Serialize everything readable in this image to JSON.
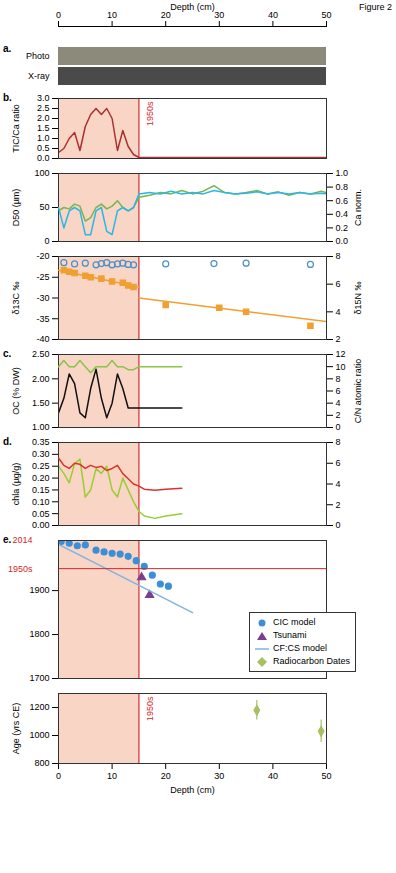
{
  "figure": {
    "label": "Figure 2",
    "xlabel": "Depth (cm)",
    "xlim": [
      0,
      50
    ],
    "xticks": [
      0,
      10,
      20,
      30,
      40,
      50
    ],
    "shaded": [
      0,
      15
    ],
    "line": 15
  },
  "chart_data": [
    {
      "label": "a.",
      "type": "image",
      "rows": [
        "Photo",
        "X-ray"
      ]
    },
    {
      "label": "b.",
      "type": "line",
      "ylabel": "TIC/Ca ratio",
      "ylim": [
        0,
        3
      ],
      "yticks": [
        {
          "value": 0,
          "label": "0.0"
        },
        {
          "value": 0.5,
          "label": "0.5"
        },
        {
          "value": 1,
          "label": "1.0"
        },
        {
          "value": 1.5,
          "label": "1.5"
        },
        {
          "value": 2,
          "label": "2.0"
        },
        {
          "value": 2.5,
          "label": "2.5"
        },
        {
          "value": 3,
          "label": "3.0"
        }
      ],
      "series": [
        {
          "color": "#a83232",
          "type": "line",
          "x": [
            0,
            1,
            2,
            3,
            4,
            5,
            6,
            7,
            8,
            9,
            10,
            11,
            12,
            13,
            14,
            15,
            20,
            30,
            40,
            50
          ],
          "values": [
            0.3,
            0.5,
            1.0,
            1.3,
            0.4,
            1.6,
            2.2,
            2.5,
            2.2,
            2.5,
            2.0,
            0.4,
            1.4,
            0.6,
            0.2,
            0.05,
            0.05,
            0.05,
            0.05,
            0.05
          ]
        }
      ],
      "annotations": [
        {
          "text": "1950s",
          "x": 15
        }
      ]
    },
    {
      "type": "line",
      "ylabel": "D50 (µm)",
      "ylim": [
        0,
        100
      ],
      "yticks": [
        0,
        50,
        100
      ],
      "y2label": "Ca norm.",
      "y2lim": [
        0,
        1
      ],
      "y2ticks": [
        {
          "value": 0,
          "label": "0.0"
        },
        {
          "value": 0.2,
          "label": "0.2"
        },
        {
          "value": 0.4,
          "label": "0.4"
        },
        {
          "value": 0.6,
          "label": "0.6"
        },
        {
          "value": 0.8,
          "label": "0.8"
        },
        {
          "value": 1,
          "label": "1.0"
        }
      ],
      "series": [
        {
          "color": "#7ab648",
          "type": "line",
          "x": [
            0,
            1,
            2,
            3,
            4,
            5,
            6,
            7,
            8,
            9,
            10,
            11,
            12,
            13,
            14,
            15,
            17,
            19,
            21,
            23,
            25,
            27,
            29,
            31,
            33,
            35,
            37,
            39,
            41,
            43,
            45,
            47,
            49,
            50
          ],
          "values": [
            45,
            50,
            48,
            55,
            52,
            30,
            35,
            50,
            55,
            48,
            52,
            60,
            50,
            45,
            50,
            65,
            68,
            72,
            70,
            75,
            70,
            74,
            82,
            72,
            70,
            72,
            75,
            70,
            73,
            68,
            72,
            70,
            74,
            72
          ]
        },
        {
          "color": "#29b6e8",
          "type": "line",
          "axis": "y2",
          "x": [
            0,
            1,
            2,
            3,
            4,
            5,
            6,
            7,
            8,
            9,
            10,
            11,
            12,
            13,
            14,
            15,
            17,
            19,
            21,
            23,
            25,
            27,
            29,
            31,
            33,
            35,
            37,
            39,
            41,
            43,
            45,
            47,
            49,
            50
          ],
          "values": [
            0.5,
            0.2,
            0.45,
            0.5,
            0.45,
            0.1,
            0.1,
            0.45,
            0.5,
            0.15,
            0.1,
            0.45,
            0.5,
            0.45,
            0.5,
            0.7,
            0.72,
            0.7,
            0.74,
            0.7,
            0.72,
            0.7,
            0.75,
            0.72,
            0.7,
            0.71,
            0.73,
            0.7,
            0.72,
            0.7,
            0.72,
            0.7,
            0.71,
            0.7
          ]
        }
      ]
    },
    {
      "type": "scatter",
      "ylabel": "δ13C ‰",
      "ylim": [
        -40,
        -20
      ],
      "yticks": [
        -40,
        -35,
        -30,
        -25,
        -20
      ],
      "y2label": "δ15N ‰",
      "y2lim": [
        2,
        8
      ],
      "y2ticks": [
        2,
        4,
        6,
        8
      ],
      "series": [
        {
          "color": "#4a90c8",
          "type": "scatter",
          "marker": "open-circle",
          "x": [
            1,
            3,
            5,
            7,
            8,
            9,
            10,
            11,
            12,
            13,
            14,
            20,
            29,
            35,
            47
          ],
          "values": [
            -21.5,
            -21.8,
            -21.6,
            -22,
            -21.7,
            -21.5,
            -22,
            -21.8,
            -21.6,
            -21.9,
            -22,
            -21.8,
            -21.7,
            -21.6,
            -21.9
          ]
        },
        {
          "color": "#f0a030",
          "type": "scatter",
          "marker": "square",
          "axis": "y2",
          "x": [
            1,
            2,
            3,
            5,
            6,
            8,
            10,
            12,
            13,
            14,
            20,
            30,
            35,
            47
          ],
          "values": [
            7.0,
            6.9,
            6.8,
            6.6,
            6.5,
            6.4,
            6.2,
            6.1,
            5.9,
            5.8,
            4.5,
            4.3,
            4.0,
            3.0
          ]
        },
        {
          "color": "#f0a030",
          "type": "line",
          "axis": "y2",
          "x": [
            0,
            15
          ],
          "values": [
            7.0,
            5.8
          ]
        },
        {
          "color": "#f0a030",
          "type": "line",
          "axis": "y2",
          "x": [
            15,
            50
          ],
          "values": [
            5.0,
            3.3
          ]
        }
      ]
    },
    {
      "label": "c.",
      "type": "line",
      "ylabel": "OC (% DW)",
      "ylim": [
        1,
        2.5
      ],
      "yticks": [
        {
          "value": 1,
          "label": "1.00"
        },
        {
          "value": 1.5,
          "label": "1.50"
        },
        {
          "value": 2,
          "label": "2.00"
        },
        {
          "value": 2.5,
          "label": "2.50"
        }
      ],
      "y2label": "C/N atomic ratio",
      "y2lim": [
        0,
        12
      ],
      "y2ticks": [
        0,
        2,
        4,
        6,
        8,
        10,
        12
      ],
      "series": [
        {
          "color": "#111111",
          "type": "line",
          "x": [
            0,
            1,
            2,
            3,
            4,
            5,
            6,
            7,
            8,
            9,
            10,
            11,
            12,
            13,
            14,
            15,
            23
          ],
          "values": [
            1.3,
            1.6,
            2.1,
            1.9,
            1.3,
            1.2,
            1.8,
            2.2,
            1.6,
            1.2,
            1.5,
            2.1,
            1.8,
            1.4,
            1.4,
            1.4,
            1.4
          ]
        },
        {
          "color": "#8bc34a",
          "type": "line",
          "axis": "y2",
          "x": [
            0,
            1,
            2,
            3,
            4,
            5,
            6,
            7,
            8,
            9,
            10,
            11,
            12,
            13,
            14,
            15,
            23
          ],
          "values": [
            10,
            11,
            10,
            10,
            11,
            10,
            9,
            10,
            10,
            10,
            11,
            10,
            10,
            9.5,
            9.5,
            10,
            10
          ]
        }
      ]
    },
    {
      "label": "d.",
      "type": "line",
      "ylabel": "chla (µg/g)",
      "ylim": [
        0,
        0.35
      ],
      "yticks": [
        {
          "value": 0,
          "label": "0.00"
        },
        {
          "value": 0.05,
          "label": "0.05"
        },
        {
          "value": 0.1,
          "label": "0.10"
        },
        {
          "value": 0.15,
          "label": "0.15"
        },
        {
          "value": 0.2,
          "label": "0.20"
        },
        {
          "value": 0.25,
          "label": "0.25"
        },
        {
          "value": 0.3,
          "label": "0.30"
        },
        {
          "value": 0.35,
          "label": "0.35"
        }
      ],
      "y2lim": [
        0,
        8
      ],
      "y2ticks": [
        0,
        2,
        4,
        6,
        8
      ],
      "series": [
        {
          "color": "#9acd32",
          "type": "line",
          "x": [
            0,
            1,
            2,
            3,
            4,
            5,
            6,
            7,
            8,
            9,
            10,
            11,
            12,
            13,
            14,
            15,
            16,
            18,
            20,
            23
          ],
          "values": [
            0.25,
            0.22,
            0.18,
            0.26,
            0.28,
            0.12,
            0.15,
            0.24,
            0.22,
            0.25,
            0.15,
            0.12,
            0.2,
            0.15,
            0.1,
            0.06,
            0.04,
            0.03,
            0.04,
            0.05
          ]
        },
        {
          "color": "#d9342b",
          "type": "line",
          "axis": "y2",
          "x": [
            0,
            1,
            2,
            3,
            4,
            5,
            6,
            7,
            8,
            9,
            10,
            11,
            12,
            13,
            14,
            15,
            16,
            18,
            20,
            23
          ],
          "values": [
            6.5,
            5.8,
            5.5,
            6.0,
            5.9,
            5.5,
            5.8,
            5.6,
            5.7,
            5.3,
            5.5,
            5.8,
            5.0,
            4.5,
            4.0,
            3.8,
            3.5,
            3.4,
            3.5,
            3.6
          ]
        }
      ]
    },
    {
      "label": "e.",
      "type": "scatter",
      "ylim": [
        1700,
        2014
      ],
      "yticks": [
        1700,
        1800,
        1900
      ],
      "legend": "bottom-right",
      "series": [
        {
          "name": "CIC model",
          "color": "#3b8fd9",
          "type": "scatter",
          "marker": "circle",
          "x": [
            0.5,
            2,
            3.5,
            5,
            7,
            8.5,
            10,
            11.5,
            13,
            14.5,
            16,
            17.5,
            19,
            20.5
          ],
          "values": [
            2012,
            2008,
            2002,
            2004,
            1992,
            1988,
            1985,
            1983,
            1978,
            1968,
            1955,
            1935,
            1915,
            1910
          ]
        },
        {
          "name": "Tsunami",
          "color": "#7b3f8c",
          "type": "scatter",
          "marker": "triangle",
          "x": [
            15.5,
            17
          ],
          "values": [
            1930,
            1890
          ]
        },
        {
          "name": "CF:CS model",
          "color": "#7fb3e0",
          "type": "line",
          "x": [
            0,
            25
          ],
          "values": [
            2005,
            1850
          ]
        }
      ],
      "annotations": [
        {
          "text": "2014",
          "y": 2014
        },
        {
          "text": "1950s",
          "y": 1950
        }
      ]
    },
    {
      "type": "scatter",
      "ylabel": "Age (yrs CE)",
      "ylim": [
        800,
        1300
      ],
      "yticks": [
        800,
        1000,
        1200
      ],
      "series": [
        {
          "name": "Radiocarbon Dates",
          "color": "#a8c060",
          "type": "scatter",
          "marker": "diamond",
          "x": [
            37,
            49
          ],
          "values": [
            1180,
            1030
          ],
          "errors": [
            [
              1110,
              1250
            ],
            [
              950,
              1110
            ]
          ]
        }
      ],
      "annotations": [
        {
          "text": "1950s",
          "x": 15
        }
      ]
    }
  ]
}
